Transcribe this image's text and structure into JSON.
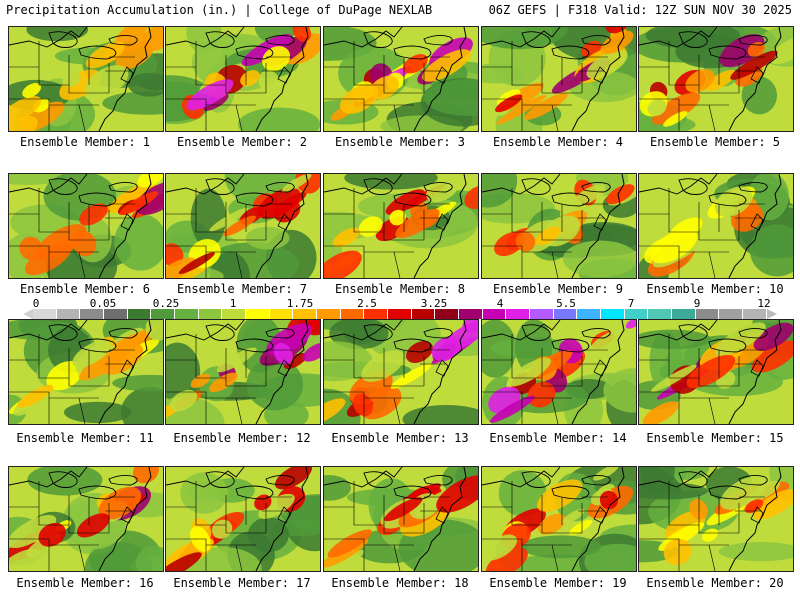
{
  "header": {
    "title": "Precipitation Accumulation (in.) | College of DuPage NEXLAB",
    "run_info": "06Z GEFS | F318 Valid: 12Z SUN NOV 30 2025"
  },
  "legend": {
    "tick_labels": [
      "0",
      "0.05",
      "0.25",
      "1",
      "1.75",
      "2.5",
      "3.25",
      "4",
      "5.5",
      "7",
      "9",
      "12"
    ],
    "colors": [
      "#d8d8d8",
      "#b4b4b4",
      "#8c8c8c",
      "#6e6e6e",
      "#3c7a32",
      "#4f9a3a",
      "#65b040",
      "#8cc63f",
      "#bfdc3c",
      "#ffff00",
      "#ffe000",
      "#ffc000",
      "#ff9a00",
      "#ff6a00",
      "#ff3000",
      "#e00000",
      "#b80000",
      "#900018",
      "#a0006e",
      "#c800b4",
      "#e020e6",
      "#b45aff",
      "#7878ff",
      "#3cb4ff",
      "#00e6ff",
      "#40d0c8",
      "#50c8b4",
      "#3caa96",
      "#8c8c8c",
      "#a0a0a0",
      "#b4b4b4"
    ]
  },
  "panels": [
    {
      "label": "Ensemble Member: 1"
    },
    {
      "label": "Ensemble Member: 2"
    },
    {
      "label": "Ensemble Member: 3"
    },
    {
      "label": "Ensemble Member: 4"
    },
    {
      "label": "Ensemble Member: 5"
    },
    {
      "label": "Ensemble Member: 6"
    },
    {
      "label": "Ensemble Member: 7"
    },
    {
      "label": "Ensemble Member: 8"
    },
    {
      "label": "Ensemble Member: 9"
    },
    {
      "label": "Ensemble Member: 10"
    },
    {
      "label": "Ensemble Member: 11"
    },
    {
      "label": "Ensemble Member: 12"
    },
    {
      "label": "Ensemble Member: 13"
    },
    {
      "label": "Ensemble Member: 14"
    },
    {
      "label": "Ensemble Member: 15"
    },
    {
      "label": "Ensemble Member: 16"
    },
    {
      "label": "Ensemble Member: 17"
    },
    {
      "label": "Ensemble Member: 18"
    },
    {
      "label": "Ensemble Member: 19"
    },
    {
      "label": "Ensemble Member: 20"
    }
  ]
}
